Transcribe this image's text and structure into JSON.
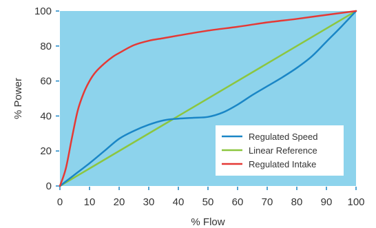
{
  "chart_data": {
    "type": "line",
    "title": "",
    "xlabel": "% Flow",
    "ylabel": "% Power",
    "xlim": [
      0,
      100
    ],
    "ylim": [
      0,
      100
    ],
    "xticks": [
      "0",
      "10",
      "20",
      "30",
      "40",
      "50",
      "60",
      "70",
      "80",
      "90",
      "100"
    ],
    "yticks": [
      "0",
      "20",
      "40",
      "60",
      "80",
      "100"
    ],
    "grid": false,
    "legend_position": "bottom-right",
    "plot_background": "#8dd3ec",
    "series": [
      {
        "name": "Regulated Speed",
        "color": "#1a86c6",
        "x": [
          0,
          5,
          10,
          15,
          20,
          25,
          30,
          35,
          40,
          45,
          50,
          55,
          60,
          65,
          70,
          75,
          80,
          85,
          90,
          95,
          100
        ],
        "y": [
          0,
          6.5,
          13,
          20,
          27,
          31.5,
          35,
          37.5,
          38.5,
          39,
          39.5,
          42,
          46.5,
          52,
          57,
          62,
          67.5,
          74,
          82.5,
          91,
          100
        ]
      },
      {
        "name": "Linear Reference",
        "color": "#8cc63f",
        "x": [
          0,
          100
        ],
        "y": [
          0,
          100
        ]
      },
      {
        "name": "Regulated Intake",
        "color": "#e53935",
        "x": [
          0,
          2,
          4,
          6,
          8,
          10,
          12,
          15,
          18,
          20,
          25,
          30,
          35,
          40,
          50,
          60,
          70,
          80,
          90,
          100
        ],
        "y": [
          0,
          10,
          27,
          43,
          53,
          60,
          65,
          70,
          74,
          76,
          80.5,
          83,
          84.5,
          86,
          88.8,
          91,
          93.5,
          95.5,
          97.8,
          100
        ]
      }
    ]
  }
}
